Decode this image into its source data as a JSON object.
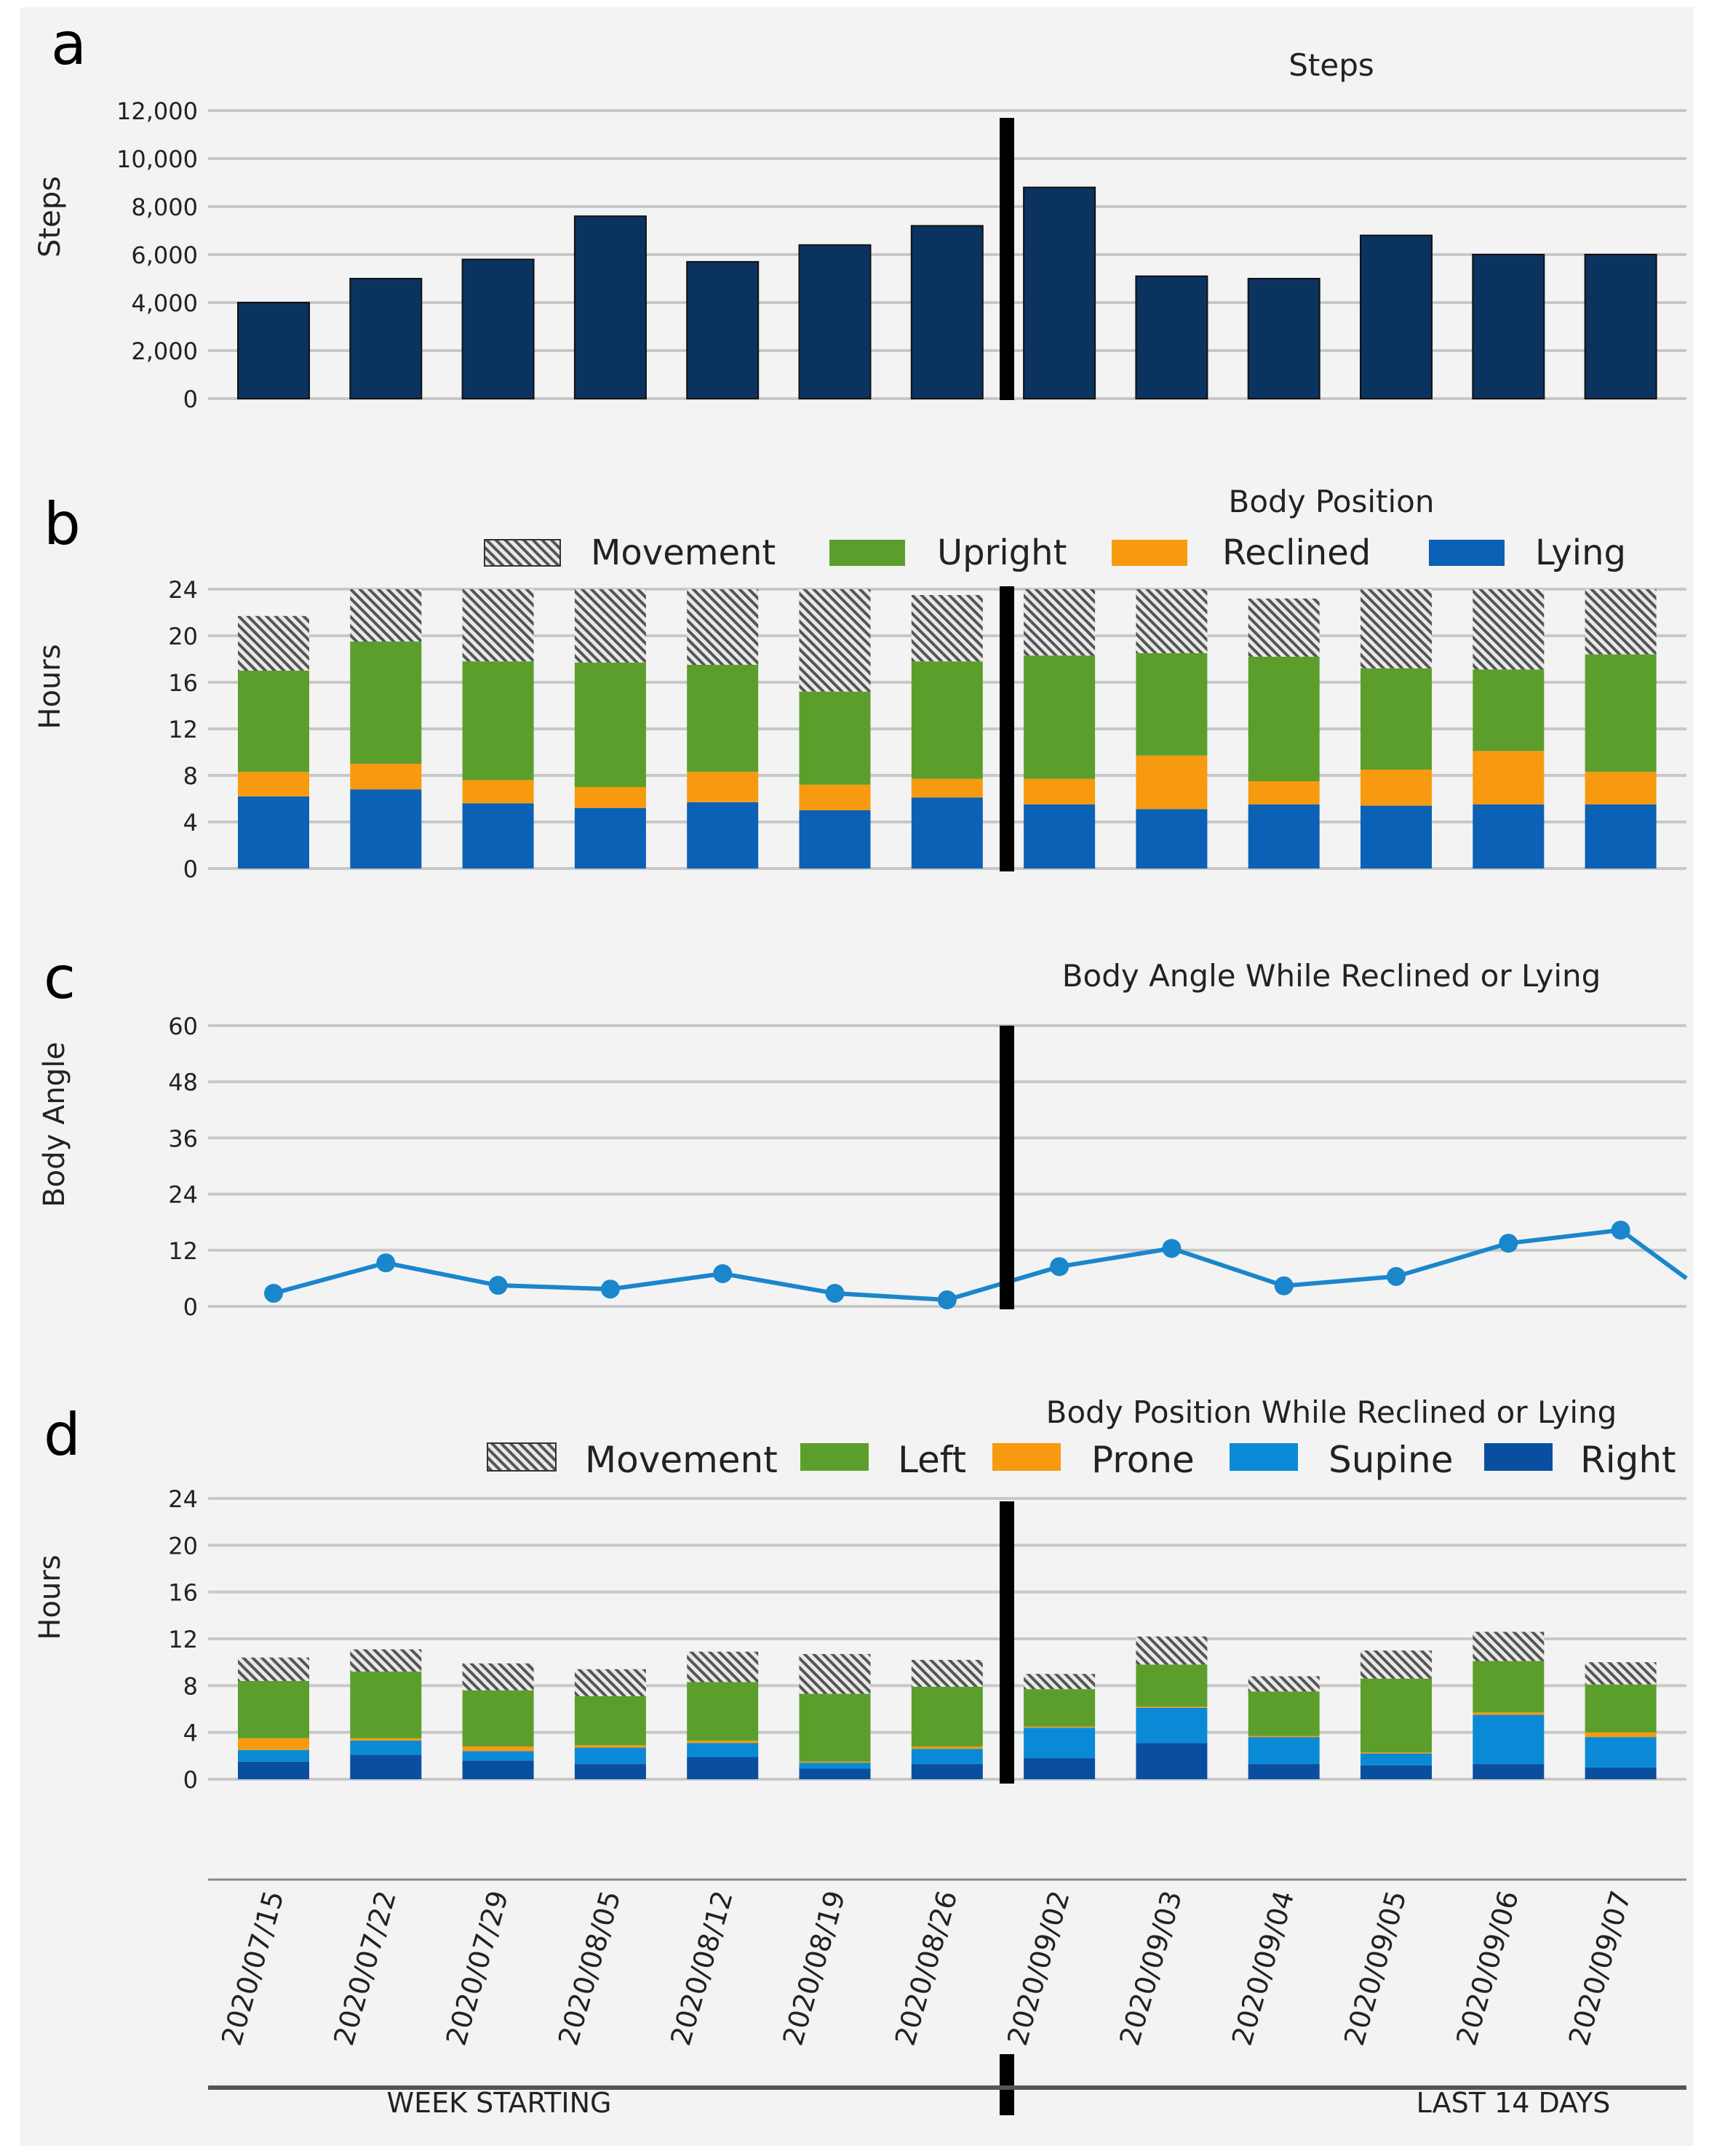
{
  "colors": {
    "navy": "#0b3360",
    "green": "#5c9e2c",
    "orange": "#f79a0f",
    "blue": "#0a61b5",
    "lightblue": "#0a8ad6",
    "darkblue": "#0a4ea0",
    "hatch": "#7a7a7a",
    "line": "#1a86cc",
    "grid": "#c8c8c8",
    "divider": "#000000"
  },
  "dates": [
    "2020/07/15",
    "2020/07/22",
    "2020/07/29",
    "2020/08/05",
    "2020/08/12",
    "2020/08/19",
    "2020/08/26",
    "2020/09/02",
    "2020/09/03",
    "2020/09/04",
    "2020/09/05",
    "2020/09/06",
    "2020/09/07"
  ],
  "footer": {
    "week_label": "WEEK STARTING",
    "days_label": "LAST 14 DAYS"
  },
  "chart_data": [
    {
      "panel": "a",
      "type": "bar",
      "title": "Steps",
      "ylabel": "Steps",
      "ylim": [
        0,
        12000
      ],
      "yticks": [
        "0",
        "2,000",
        "4,000",
        "6,000",
        "8,000",
        "10,000",
        "12,000"
      ],
      "categories": [
        "2020/07/15",
        "2020/07/22",
        "2020/07/29",
        "2020/08/05",
        "2020/08/12",
        "2020/08/19",
        "2020/08/26",
        "2020/09/02",
        "2020/09/03",
        "2020/09/04",
        "2020/09/05",
        "2020/09/06",
        "2020/09/07"
      ],
      "values": [
        4000,
        5000,
        5800,
        7600,
        5700,
        6400,
        7200,
        8800,
        5100,
        5000,
        6800,
        6000,
        6000
      ]
    },
    {
      "panel": "b",
      "type": "bar",
      "stacked": true,
      "title": "Body Position",
      "ylabel": "Hours",
      "ylim": [
        0,
        24
      ],
      "yticks": [
        "0",
        "4",
        "8",
        "12",
        "16",
        "20",
        "24"
      ],
      "categories": [
        "2020/07/15",
        "2020/07/22",
        "2020/07/29",
        "2020/08/05",
        "2020/08/12",
        "2020/08/19",
        "2020/08/26",
        "2020/09/02",
        "2020/09/03",
        "2020/09/04",
        "2020/09/05",
        "2020/09/06",
        "2020/09/07"
      ],
      "legend": [
        "Movement",
        "Upright",
        "Reclined",
        "Lying"
      ],
      "series": [
        {
          "name": "Lying",
          "values": [
            6.2,
            6.8,
            5.6,
            5.2,
            5.7,
            5.0,
            6.1,
            5.5,
            5.1,
            5.5,
            5.4,
            5.5,
            5.5
          ]
        },
        {
          "name": "Reclined",
          "values": [
            2.1,
            2.2,
            2.0,
            1.8,
            2.6,
            2.2,
            1.6,
            2.2,
            4.6,
            2.0,
            3.1,
            4.6,
            2.8
          ]
        },
        {
          "name": "Upright",
          "values": [
            8.7,
            10.5,
            10.2,
            10.7,
            9.2,
            8.0,
            10.1,
            10.6,
            8.8,
            10.7,
            8.7,
            7.0,
            10.1
          ]
        },
        {
          "name": "Movement",
          "values": [
            4.7,
            4.5,
            6.2,
            6.3,
            6.5,
            8.8,
            5.7,
            5.7,
            5.5,
            5.0,
            6.8,
            6.9,
            5.6
          ]
        }
      ]
    },
    {
      "panel": "c",
      "type": "line",
      "title": "Body Angle While Reclined or Lying",
      "ylabel": "Body Angle",
      "ylim": [
        0,
        60
      ],
      "yticks": [
        "0",
        "12",
        "24",
        "36",
        "48",
        "60"
      ],
      "categories": [
        "2020/07/15",
        "2020/07/22",
        "2020/07/29",
        "2020/08/05",
        "2020/08/12",
        "2020/08/19",
        "2020/08/26",
        "2020/09/02",
        "2020/09/03",
        "2020/09/04",
        "2020/09/05",
        "2020/09/06",
        "2020/09/07"
      ],
      "values": [
        2.8,
        9.3,
        4.5,
        3.7,
        7.0,
        2.8,
        1.4,
        8.5,
        12.4,
        4.4,
        6.4,
        13.5,
        16.3
      ],
      "trailing_value": 6.0
    },
    {
      "panel": "d",
      "type": "bar",
      "stacked": true,
      "title": "Body Position While Reclined or Lying",
      "ylabel": "Hours",
      "ylim": [
        0,
        24
      ],
      "yticks": [
        "0",
        "4",
        "8",
        "12",
        "16",
        "20",
        "24"
      ],
      "categories": [
        "2020/07/15",
        "2020/07/22",
        "2020/07/29",
        "2020/08/05",
        "2020/08/12",
        "2020/08/19",
        "2020/08/26",
        "2020/09/02",
        "2020/09/03",
        "2020/09/04",
        "2020/09/05",
        "2020/09/06",
        "2020/09/07"
      ],
      "legend": [
        "Movement",
        "Left",
        "Prone",
        "Supine",
        "Right"
      ],
      "series": [
        {
          "name": "Right",
          "values": [
            1.5,
            2.1,
            1.6,
            1.3,
            1.9,
            0.9,
            1.3,
            1.8,
            3.1,
            1.3,
            1.2,
            1.3,
            1.0
          ]
        },
        {
          "name": "Supine",
          "values": [
            1.0,
            1.2,
            0.8,
            1.4,
            1.2,
            0.5,
            1.3,
            2.6,
            3.0,
            2.3,
            1.0,
            4.2,
            2.6
          ]
        },
        {
          "name": "Prone",
          "values": [
            1.0,
            0.2,
            0.4,
            0.2,
            0.2,
            0.1,
            0.2,
            0.1,
            0.1,
            0.1,
            0.1,
            0.2,
            0.4
          ]
        },
        {
          "name": "Left",
          "values": [
            4.9,
            5.7,
            4.8,
            4.2,
            5.0,
            5.8,
            5.1,
            3.2,
            3.6,
            3.8,
            6.3,
            4.4,
            4.1
          ]
        },
        {
          "name": "Movement",
          "values": [
            2.0,
            1.9,
            2.3,
            2.3,
            2.6,
            3.4,
            2.3,
            1.3,
            2.4,
            1.3,
            2.4,
            2.5,
            1.9
          ]
        }
      ]
    }
  ]
}
